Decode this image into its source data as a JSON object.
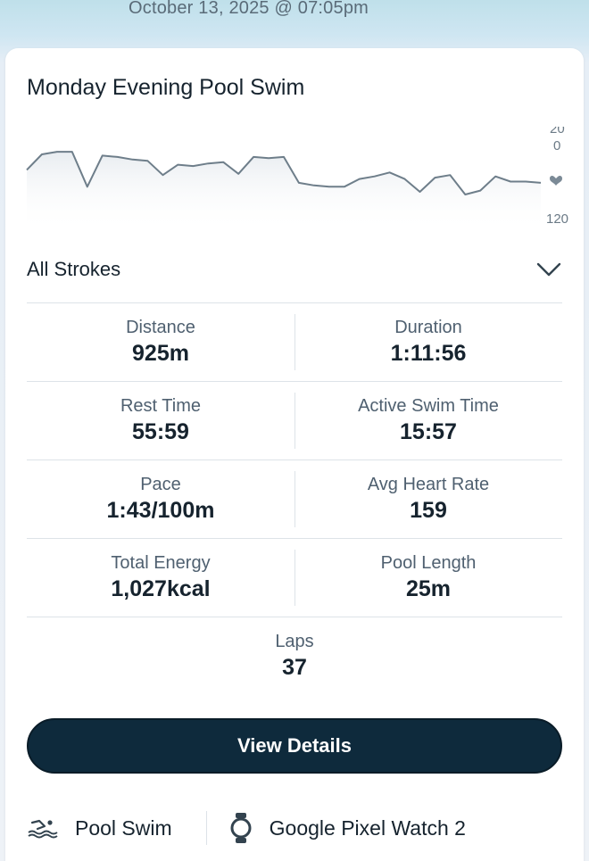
{
  "header": {
    "date": "October 13, 2025 @ 07:05pm"
  },
  "card": {
    "title": "Monday Evening Pool Swim",
    "chart_data": {
      "type": "line",
      "y_axis_labels": [
        "200",
        "120"
      ],
      "y_axis_top_line1": "20",
      "y_axis_top_line2": "0",
      "y_axis_bottom": "120",
      "ylim": [
        120,
        200
      ],
      "marker_icon": "heart-icon",
      "values": [
        168,
        180,
        182,
        182,
        155,
        179,
        178,
        176,
        175,
        164,
        172,
        171,
        173,
        174,
        165,
        178,
        177,
        178,
        158,
        156,
        155,
        155,
        161,
        163,
        166,
        161,
        151,
        162,
        164,
        149,
        152,
        163,
        159,
        159,
        158
      ]
    },
    "strokes": {
      "label": "All Strokes",
      "icon": "chevron-down-icon"
    },
    "stats": [
      [
        {
          "label": "Distance",
          "value": "925m"
        },
        {
          "label": "Duration",
          "value": "1:11:56"
        }
      ],
      [
        {
          "label": "Rest Time",
          "value": "55:59"
        },
        {
          "label": "Active Swim Time",
          "value": "15:57"
        }
      ],
      [
        {
          "label": "Pace",
          "value": "1:43/100m"
        },
        {
          "label": "Avg Heart Rate",
          "value": "159"
        }
      ],
      [
        {
          "label": "Total Energy",
          "value": "1,027kcal"
        },
        {
          "label": "Pool Length",
          "value": "25m"
        }
      ],
      [
        {
          "label": "Laps",
          "value": "37"
        }
      ]
    ],
    "button_label": "View Details",
    "footer": {
      "activity": {
        "label": "Pool Swim",
        "icon": "swimmer-icon"
      },
      "device": {
        "label": "Google Pixel Watch 2",
        "icon": "watch-icon"
      }
    },
    "colors": {
      "button_bg": "#0e2a3c",
      "line": "#6e7e8a"
    }
  }
}
